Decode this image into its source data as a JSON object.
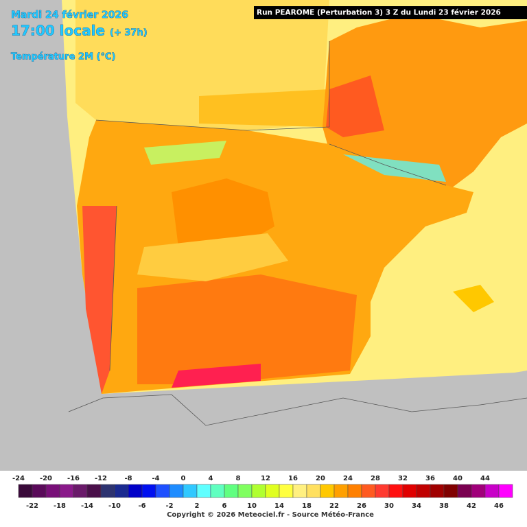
{
  "header": {
    "date": "Mardi 24 février 2026",
    "time": "17:00 locale",
    "lead": "(+ 37h)",
    "parameter": "Température 2M (°C)",
    "run": "Run PEAROME (Perturbation 3) 3 Z du Lundi 23 février 2026"
  },
  "legend": {
    "ticks": [
      -24,
      -22,
      -20,
      -18,
      -16,
      -14,
      -12,
      -10,
      -8,
      -6,
      -4,
      -2,
      0,
      2,
      4,
      6,
      8,
      10,
      12,
      14,
      16,
      18,
      20,
      22,
      24,
      26,
      28,
      30,
      32,
      34,
      36,
      38,
      40,
      42,
      44,
      46
    ],
    "colors": [
      "#3a0a3a",
      "#5a0a5a",
      "#780f78",
      "#8a1a8a",
      "#6a1a6a",
      "#4a0f4a",
      "#2d3370",
      "#1a2a90",
      "#0000c8",
      "#0010f0",
      "#1e50ff",
      "#1e8cff",
      "#30c8ff",
      "#60ffff",
      "#60ffc0",
      "#60ff80",
      "#80ff60",
      "#b0ff30",
      "#e0ff20",
      "#ffff40",
      "#fff080",
      "#ffe060",
      "#ffc800",
      "#ffa000",
      "#ff8000",
      "#ff5a20",
      "#ff3a30",
      "#ff1010",
      "#e00000",
      "#c00000",
      "#a00000",
      "#800000",
      "#7a0050",
      "#a0007a",
      "#c800c8",
      "#ff00ff"
    ]
  },
  "footer": {
    "copyright": "Copyright © 2026 Meteociel.fr - Source Météo-France"
  }
}
